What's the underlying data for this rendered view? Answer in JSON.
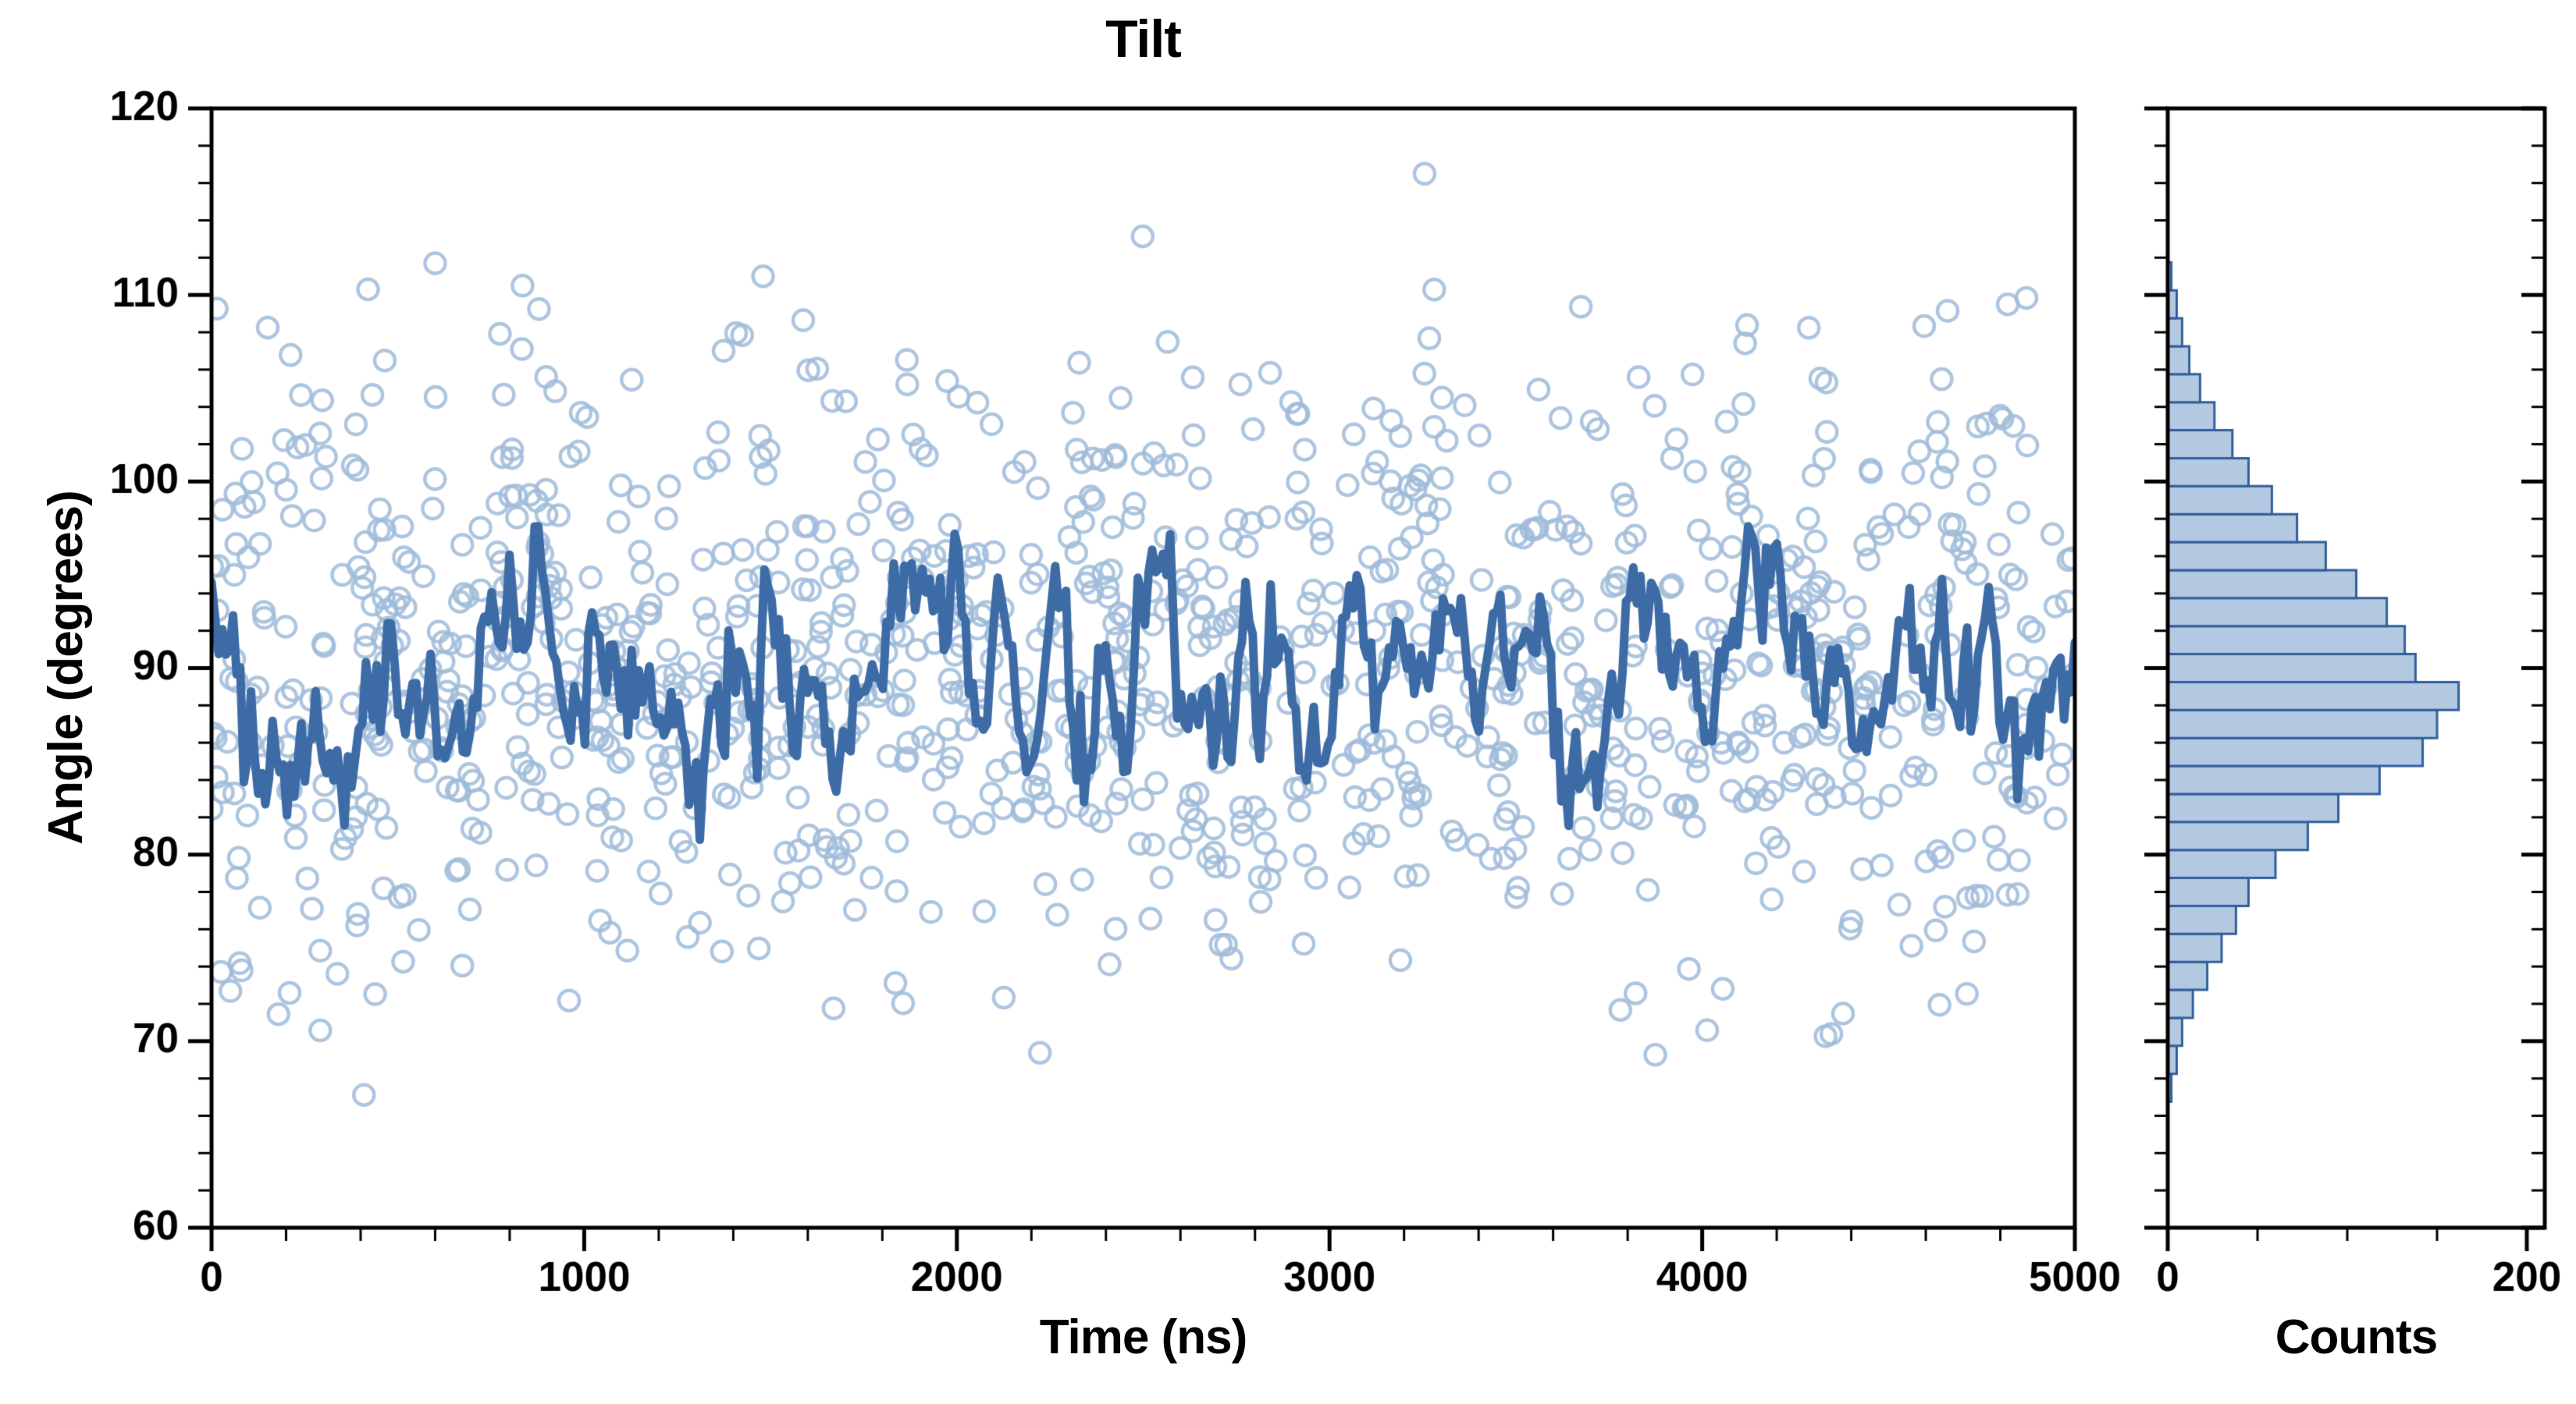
{
  "chart_data": {
    "type": "scatter",
    "title": "Tilt",
    "xlabel": "Time (ns)",
    "ylabel": "Angle (degrees)",
    "xlim": [
      0,
      5000
    ],
    "ylim": [
      60,
      120
    ],
    "x_major_ticks": [
      0,
      1000,
      2000,
      3000,
      4000,
      5000
    ],
    "x_minor_step": 200,
    "y_major_ticks": [
      60,
      70,
      80,
      90,
      100,
      110,
      120
    ],
    "y_minor_step": 2,
    "grid": false,
    "legend": null,
    "scatter": {
      "n": 1150,
      "mean": 89.7,
      "std": 8.0,
      "y_min": 66.5,
      "y_max": 115.5,
      "seed": 1337
    },
    "extra_points": [
      [
        3255,
        116.5
      ],
      [
        600,
        111.7
      ],
      [
        1480,
        111.0
      ],
      [
        420,
        110.3
      ],
      [
        4820,
        109.5
      ]
    ],
    "running_average_line": {
      "n": 520,
      "start": 96.5,
      "mean": 89.4,
      "phi": 0.78,
      "sigma": 2.1,
      "min": 76.6,
      "max": 97.6,
      "seed": 2024
    },
    "histogram": {
      "type": "bar",
      "orientation": "horizontal",
      "xlabel": "Counts",
      "xlim": [
        0,
        210
      ],
      "x_major_ticks": [
        0,
        200
      ],
      "x_minor_ticks": [
        50,
        100,
        150
      ],
      "bin_width": 1.5,
      "bin_centers": [
        67.5,
        69,
        70.5,
        72,
        73.5,
        75,
        76.5,
        78,
        79.5,
        81,
        82.5,
        84,
        85.5,
        87,
        88.5,
        90,
        91.5,
        93,
        94.5,
        96,
        97.5,
        99,
        100.5,
        102,
        103.5,
        105,
        106.5,
        108,
        109.5,
        111
      ],
      "counts": [
        2,
        5,
        8,
        14,
        22,
        30,
        38,
        45,
        60,
        78,
        95,
        118,
        142,
        150,
        162,
        138,
        132,
        122,
        105,
        88,
        72,
        58,
        45,
        36,
        26,
        18,
        12,
        8,
        5,
        2
      ]
    },
    "colors": {
      "scatter_stroke": "#9fbbd9",
      "line": "#3d6ba5",
      "hist_fill": "#b3c9e2",
      "hist_edge": "#315f99",
      "axis": "#000000",
      "text": "#000000",
      "background": "#ffffff"
    }
  }
}
